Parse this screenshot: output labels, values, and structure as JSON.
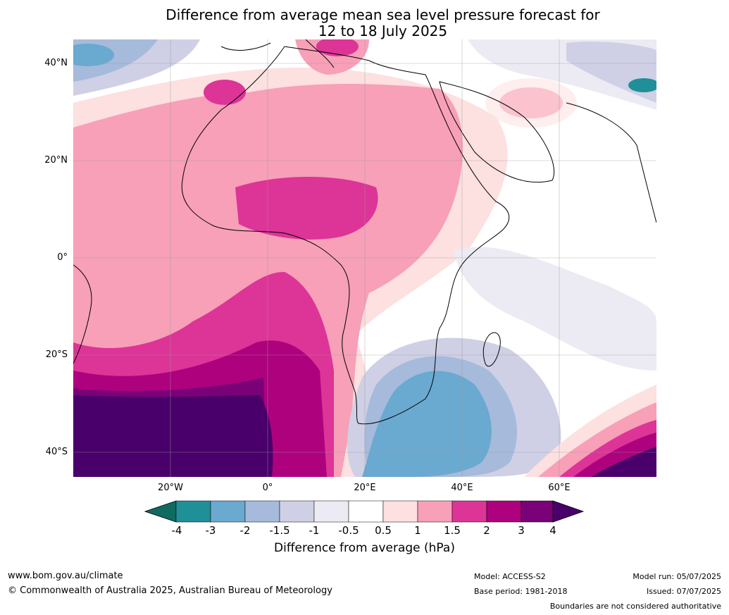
{
  "title": {
    "line1": "Difference from average mean sea level pressure forecast for",
    "line2": "12 to 18 July 2025"
  },
  "axes": {
    "lat_labels": [
      "40°N",
      "20°N",
      "0°",
      "20°S",
      "40°S"
    ],
    "lon_labels": [
      "20°W",
      "0°",
      "20°E",
      "40°E",
      "60°E"
    ]
  },
  "colorbar": {
    "label": "Difference from average (hPa)",
    "ticks": [
      "-4",
      "-3",
      "-2",
      "-1.5",
      "-1",
      "-0.5",
      "0.5",
      "1",
      "1.5",
      "2",
      "3",
      "4"
    ],
    "colors": {
      "below_min": "#0f6a5f",
      "n4_n3": "#1f8f98",
      "n3_n2": "#6aa9d0",
      "n2_n15": "#a6badb",
      "n15_n1": "#cfd0e5",
      "n1_n05": "#ecebf3",
      "neutral": "#ffffff",
      "p05_p1": "#fde0e0",
      "p1_p15": "#f7a0b8",
      "p15_p2": "#dd3497",
      "p2_p3": "#ae017e",
      "p3_p4": "#7a0177",
      "above_max": "#49006a"
    }
  },
  "footer": {
    "website": "www.bom.gov.au/climate",
    "copyright": "© Commonwealth of Australia 2025, Australian Bureau of Meteorology",
    "model": "Model: ACCESS-S2",
    "base_period": "Base period: 1981-2018",
    "model_run": "Model run: 05/07/2025",
    "issued": "Issued: 07/07/2025",
    "disclaimer": "Boundaries are not considered authoritative"
  }
}
